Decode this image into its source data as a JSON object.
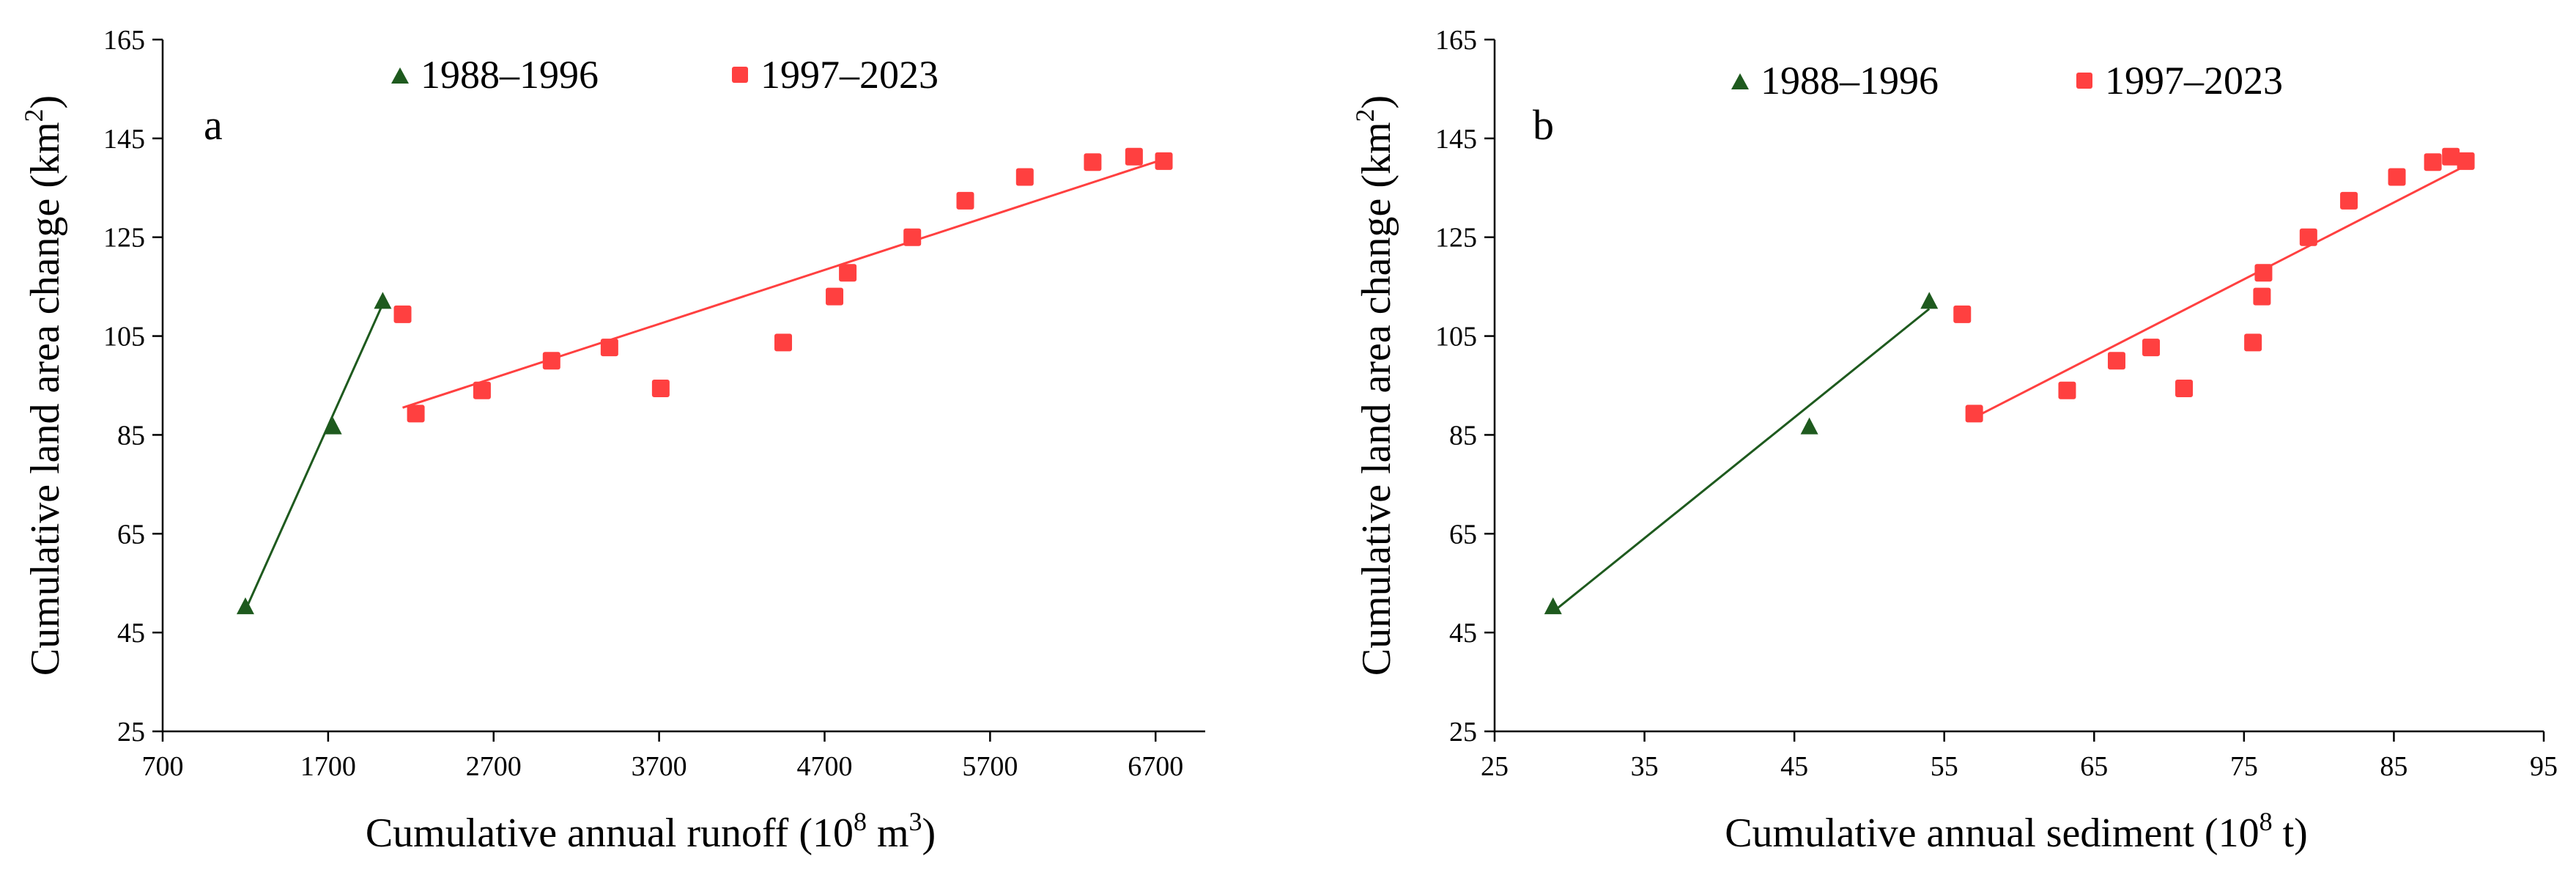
{
  "chart_data": [
    {
      "type": "scatter",
      "panel_label": "a",
      "xlabel_main": "Cumulative annual runoff (10",
      "xlabel_exp": "8",
      "xlabel_rest": " m",
      "xlabel_unit_exp": "3",
      "xlabel_close": ")",
      "ylabel_main": "Cumulative land area change (km",
      "ylabel_exp": "2",
      "ylabel_close": ")",
      "xlim": [
        700,
        7000
      ],
      "ylim": [
        25,
        165
      ],
      "xticks": [
        700,
        1700,
        2700,
        3700,
        4700,
        5700,
        6700
      ],
      "yticks": [
        25,
        45,
        65,
        85,
        105,
        125,
        145,
        165
      ],
      "legend_position": "top",
      "series": [
        {
          "name": "1988–1996",
          "marker": "triangle",
          "color": "#1e5a1e",
          "points": [
            [
              1200,
              50.2
            ],
            [
              1730,
              86.6
            ],
            [
              2030,
              112
            ]
          ],
          "trendline": [
            [
              1200,
              49.5
            ],
            [
              2030,
              111.5
            ]
          ]
        },
        {
          "name": "1997–2023",
          "marker": "square",
          "color": "#ff4040",
          "points": [
            [
              2150,
              109.4
            ],
            [
              2230,
              89.3
            ],
            [
              2630,
              94
            ],
            [
              3050,
              100
            ],
            [
              3400,
              102.7
            ],
            [
              3710,
              94.4
            ],
            [
              4450,
              103.7
            ],
            [
              4760,
              113
            ],
            [
              4840,
              117.8
            ],
            [
              5230,
              125
            ],
            [
              5550,
              132.4
            ],
            [
              5910,
              137.2
            ],
            [
              6320,
              140.2
            ],
            [
              6570,
              141.3
            ],
            [
              6750,
              140.4
            ]
          ],
          "trendline": [
            [
              2150,
              90.5
            ],
            [
              6750,
              140.8
            ]
          ]
        }
      ]
    },
    {
      "type": "scatter",
      "panel_label": "b",
      "xlabel_main": "Cumulative annual sediment (10",
      "xlabel_exp": "8",
      "xlabel_rest": " t)",
      "ylabel_main": "Cumulative land area change (km",
      "ylabel_exp": "2",
      "ylabel_close": ")",
      "xlim": [
        25,
        95
      ],
      "ylim": [
        25,
        165
      ],
      "xticks": [
        25,
        35,
        45,
        55,
        65,
        75,
        85,
        95
      ],
      "yticks": [
        25,
        45,
        65,
        85,
        105,
        125,
        145,
        165
      ],
      "legend_position": "top",
      "series": [
        {
          "name": "1988–1996",
          "marker": "triangle",
          "color": "#1e5a1e",
          "points": [
            [
              28.9,
              50.2
            ],
            [
              46,
              86.6
            ],
            [
              54,
              112
            ]
          ],
          "trendline": [
            [
              28.9,
              49.2
            ],
            [
              54,
              110.5
            ]
          ]
        },
        {
          "name": "1997–2023",
          "marker": "square",
          "color": "#ff4040",
          "points": [
            [
              56.2,
              109.4
            ],
            [
              57,
              89.3
            ],
            [
              63.2,
              94
            ],
            [
              66.5,
              100
            ],
            [
              68.8,
              102.7
            ],
            [
              71,
              94.4
            ],
            [
              75.6,
              103.7
            ],
            [
              76.2,
              113
            ],
            [
              76.3,
              117.8
            ],
            [
              79.3,
              125
            ],
            [
              82,
              132.4
            ],
            [
              85.2,
              137.2
            ],
            [
              87.6,
              140.2
            ],
            [
              88.8,
              141.3
            ],
            [
              89.8,
              140.4
            ]
          ],
          "trendline": [
            [
              57,
              88.5
            ],
            [
              89.8,
              139.5
            ]
          ]
        }
      ]
    }
  ]
}
